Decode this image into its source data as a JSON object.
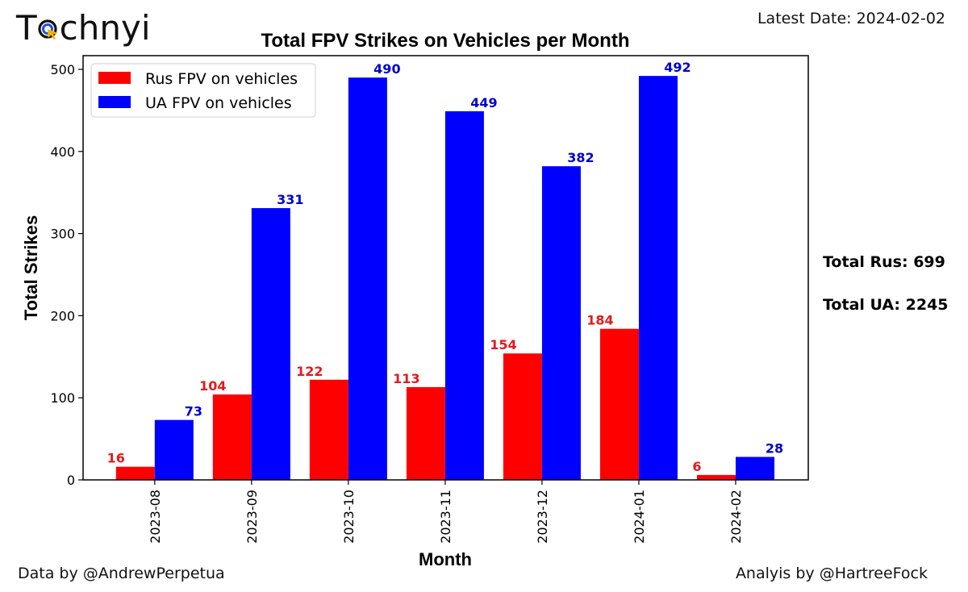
{
  "branding": {
    "logo_text_pre": "T",
    "logo_text_post": "chnyi",
    "logo_icon": "cursor-target-icon"
  },
  "header": {
    "latest_date": "Latest Date: 2024-02-02"
  },
  "totals": {
    "rus": "Total Rus: 699",
    "ua": "Total UA: 2245"
  },
  "footer": {
    "data_credit": "Data by @AndrewPerpetua",
    "analysis_credit": "Analyis by @HartreeFock"
  },
  "colors": {
    "rus": "#ff0000",
    "ua": "#0000ff",
    "rus_label": "#e31a1c",
    "ua_label": "#0000cc"
  },
  "chart_data": {
    "type": "bar",
    "title": "Total FPV Strikes on Vehicles per Month",
    "xlabel": "Month",
    "ylabel": "Total Strikes",
    "categories": [
      "2023-08",
      "2023-09",
      "2023-10",
      "2023-11",
      "2023-12",
      "2024-01",
      "2024-02"
    ],
    "series": [
      {
        "name": "Rus FPV on vehicles",
        "color": "#ff0000",
        "values": [
          16,
          104,
          122,
          113,
          154,
          184,
          6
        ]
      },
      {
        "name": "UA FPV on vehicles",
        "color": "#0000ff",
        "values": [
          73,
          331,
          490,
          449,
          382,
          492,
          28
        ]
      }
    ],
    "yticks": [
      0,
      100,
      200,
      300,
      400,
      500
    ],
    "ylim": [
      0,
      516.7
    ],
    "grid": false,
    "legend_position": "upper-left",
    "data_labels": true
  }
}
